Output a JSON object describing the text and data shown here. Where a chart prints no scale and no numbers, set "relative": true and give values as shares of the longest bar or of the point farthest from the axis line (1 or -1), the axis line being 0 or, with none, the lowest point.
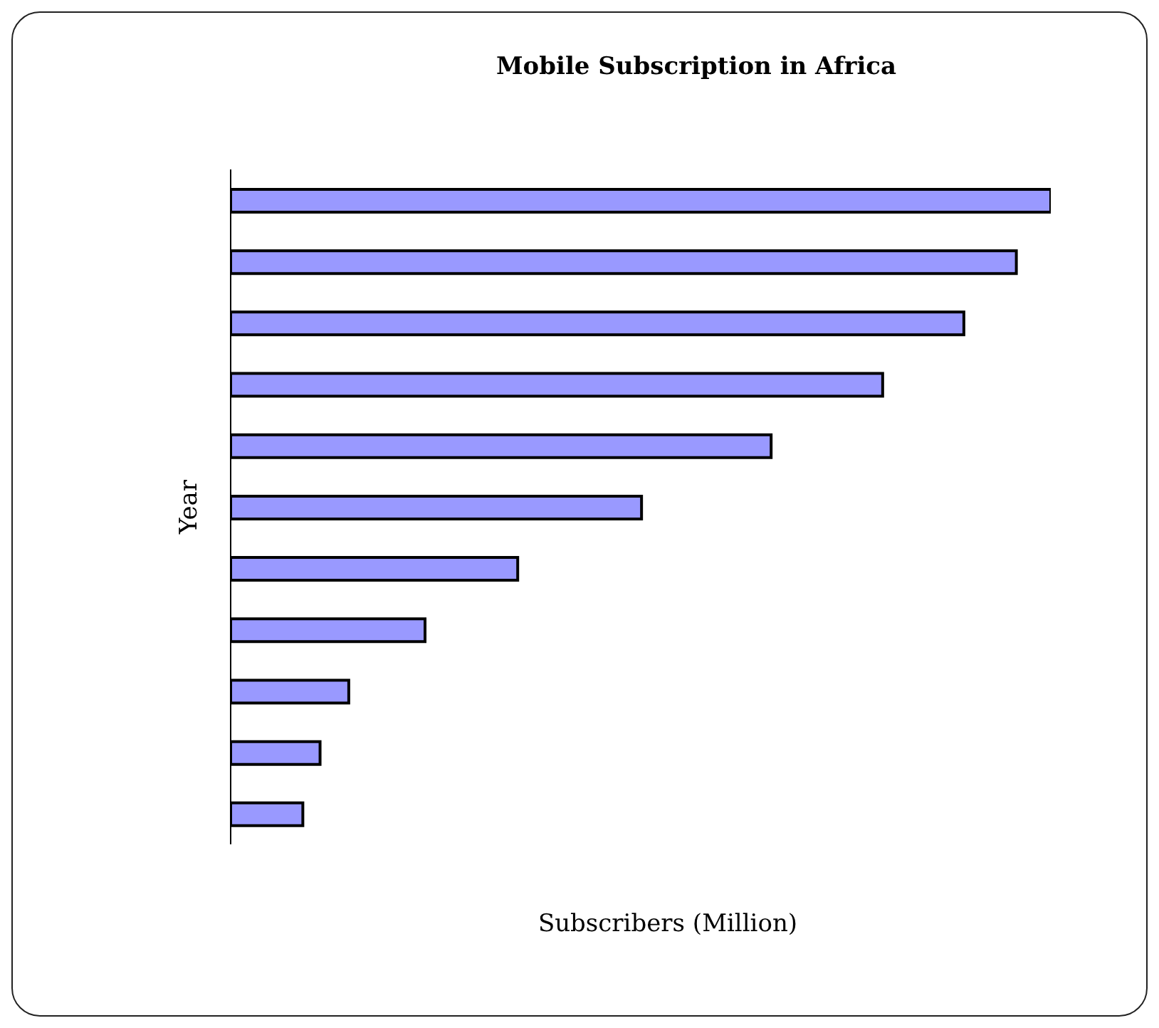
{
  "chart_data": {
    "type": "bar",
    "title": "Mobile Subscription in Africa",
    "xlabel": "Subscribers (Million)",
    "ylabel": "Year",
    "orientation": "horizontal",
    "relative": true,
    "categories": [
      null,
      null,
      null,
      null,
      null,
      null,
      null,
      null,
      null,
      null,
      null
    ],
    "values": [
      1,
      0.958,
      0.894,
      0.795,
      0.659,
      0.501,
      0.35,
      0.237,
      0.144,
      0.109,
      0.088
    ],
    "color": "#9999ff"
  }
}
